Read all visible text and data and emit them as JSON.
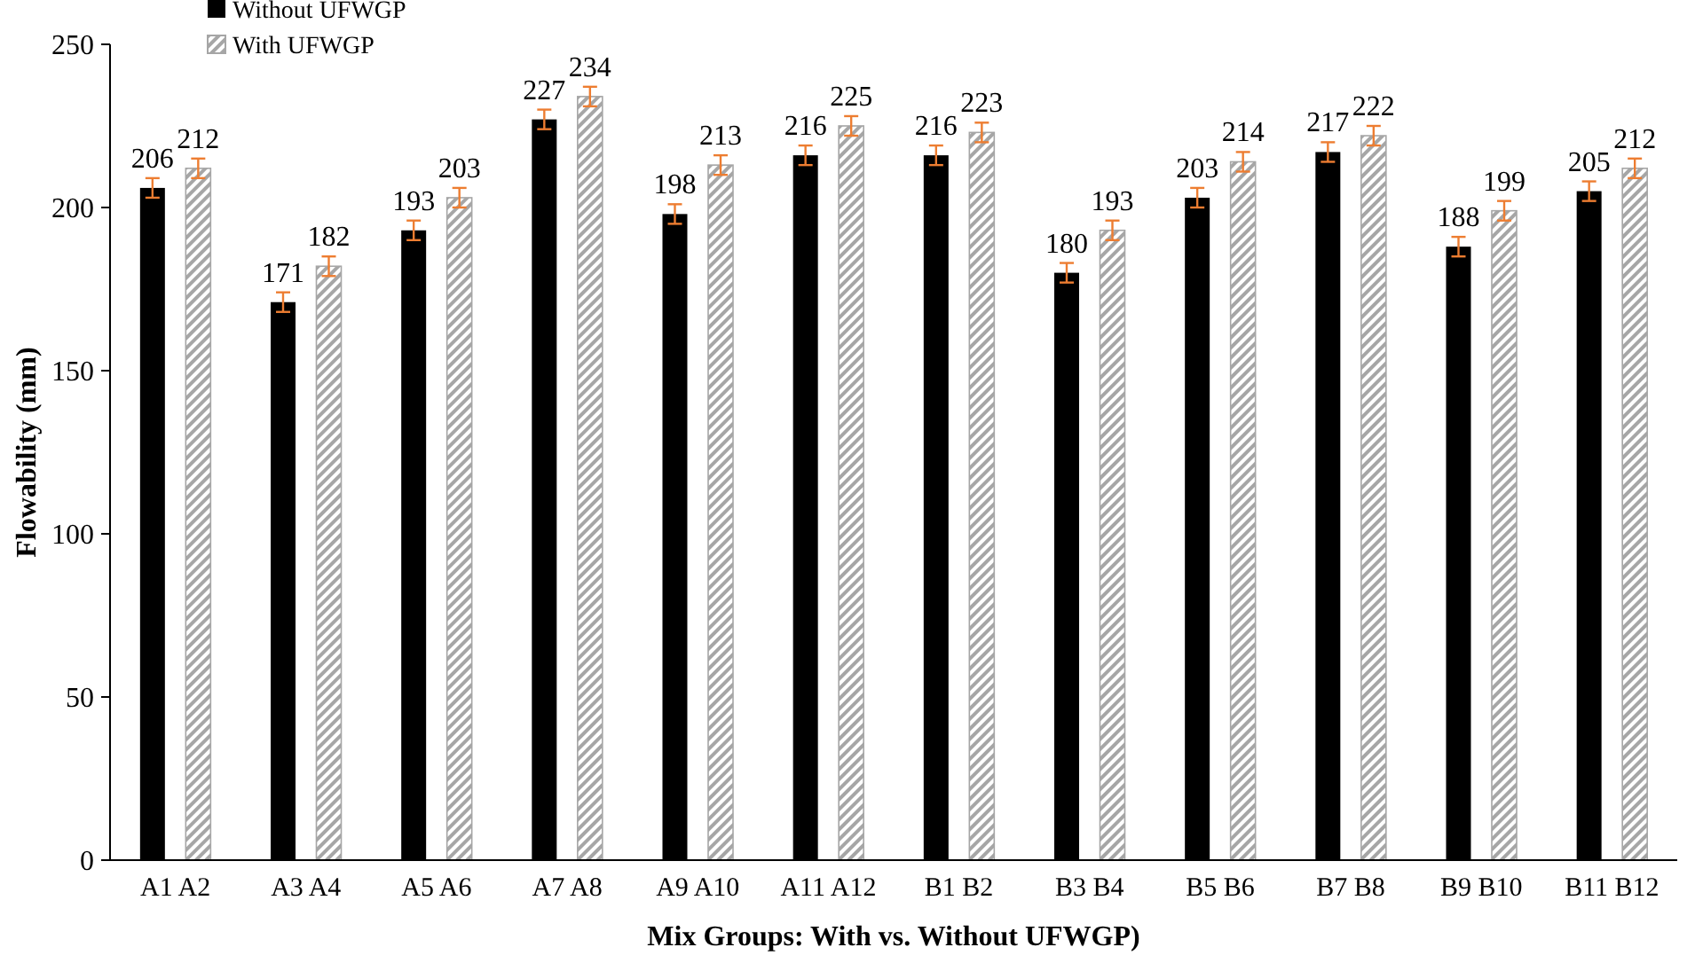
{
  "chart_data": {
    "type": "bar",
    "xlabel": "Mix Groups: With vs. Without UFWGP)",
    "ylabel": "Flowability (mm)",
    "categories": [
      "A1 A2",
      "A3 A4",
      "A5 A6",
      "A7 A8",
      "A9 A10",
      "A11 A12",
      "B1 B2",
      "B3 B4",
      "B5 B6",
      "B7 B8",
      "B9 B10",
      "B11 B12"
    ],
    "series": [
      {
        "name": "Without UFWGP",
        "color": "#000000",
        "values": [
          206,
          171,
          193,
          227,
          198,
          216,
          216,
          180,
          203,
          217,
          188,
          205
        ],
        "errors": [
          3,
          3,
          3,
          3,
          3,
          3,
          3,
          3,
          3,
          3,
          3,
          3
        ]
      },
      {
        "name": "With UFWGP",
        "color": "#a6a6a6",
        "values": [
          212,
          182,
          203,
          234,
          213,
          225,
          223,
          193,
          214,
          222,
          199,
          212
        ],
        "errors": [
          3,
          3,
          3,
          3,
          3,
          3,
          3,
          3,
          3,
          3,
          3,
          3
        ]
      }
    ],
    "ylim": [
      0,
      250
    ],
    "yticks": [
      0,
      50,
      100,
      150,
      200,
      250
    ],
    "grid": false,
    "legend": "top left",
    "data_labels": true
  }
}
